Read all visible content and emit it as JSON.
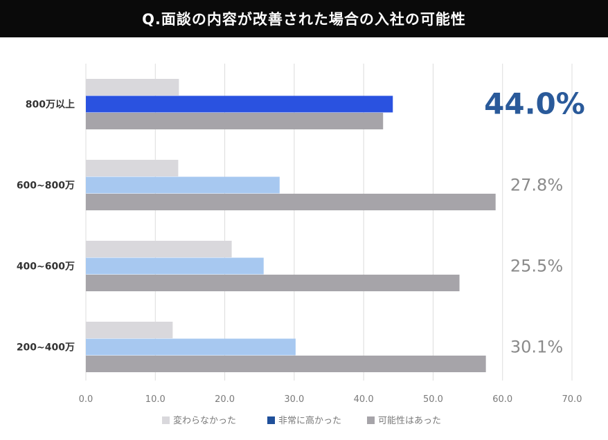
{
  "title": "Q.面談の内容が改善された場合の入社の可能性",
  "chart_data": {
    "type": "bar",
    "orientation": "horizontal",
    "categories": [
      "800万以上",
      "600~800万",
      "400~600万",
      "200~400万"
    ],
    "series": [
      {
        "name": "変わらなかった",
        "values": [
          13.4,
          13.3,
          21.0,
          12.5
        ],
        "color": "#d9d8dc"
      },
      {
        "name": "非常に高かった",
        "values": [
          44.2,
          27.9,
          25.6,
          30.2
        ],
        "color": "#a7c8f0",
        "highlight_color": "#2a52e0"
      },
      {
        "name": "可能性はあった",
        "values": [
          42.8,
          59.0,
          53.8,
          57.6
        ],
        "color": "#a6a4a9"
      }
    ],
    "annotations": [
      "44.0%",
      "27.8%",
      "25.5%",
      "30.1%"
    ],
    "highlight_annotation_color": "#2a5a9a",
    "annotation_color": "#8a8a8a",
    "xlim": [
      0,
      70
    ],
    "xticks": [
      "0.0",
      "10.0",
      "20.0",
      "30.0",
      "40.0",
      "50.0",
      "60.0",
      "70.0"
    ],
    "grid": true,
    "legend_position": "bottom"
  }
}
